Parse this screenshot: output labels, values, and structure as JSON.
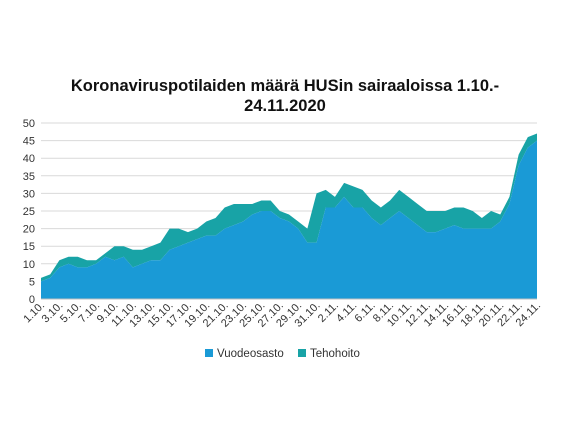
{
  "chart_data": {
    "type": "area",
    "title_lines": [
      "Koronaviruspotilaiden määrä HUSin sairaaloissa 1.10.-",
      "24.11.2020"
    ],
    "xlabel": "",
    "ylabel": "",
    "ylim": [
      0,
      50
    ],
    "yticks": [
      "0",
      "5",
      "10",
      "15",
      "20",
      "25",
      "30",
      "35",
      "40",
      "45",
      "50"
    ],
    "grid": true,
    "legend_position": "bottom",
    "colors": {
      "Vuodeosasto": "#1a9ad6",
      "Tehohoito": "#18a3a6"
    },
    "x": [
      "1.10.",
      "2.10.",
      "3.10.",
      "4.10.",
      "5.10.",
      "6.10.",
      "7.10.",
      "8.10.",
      "9.10.",
      "10.10.",
      "11.10.",
      "12.10.",
      "13.10.",
      "14.10.",
      "15.10.",
      "16.10.",
      "17.10.",
      "18.10.",
      "19.10.",
      "20.10.",
      "21.10.",
      "22.10.",
      "23.10.",
      "24.10.",
      "25.10.",
      "26.10.",
      "27.10.",
      "28.10.",
      "29.10.",
      "30.10.",
      "31.10.",
      "1.11.",
      "2.11.",
      "3.11.",
      "4.11.",
      "5.11.",
      "6.11.",
      "7.11.",
      "8.11.",
      "9.11.",
      "10.11.",
      "11.11.",
      "12.11.",
      "13.11.",
      "14.11.",
      "15.11.",
      "16.11.",
      "17.11.",
      "18.11.",
      "19.11.",
      "20.11.",
      "21.11.",
      "22.11.",
      "23.11.",
      "24.11."
    ],
    "x_tick_labels": [
      "1.10.",
      "3.10.",
      "5.10.",
      "7.10.",
      "9.10.",
      "11.10.",
      "13.10.",
      "15.10.",
      "17.10.",
      "19.10.",
      "21.10.",
      "23.10.",
      "25.10.",
      "27.10.",
      "29.10.",
      "31.10.",
      "2.11.",
      "4.11.",
      "6.11.",
      "8.11.",
      "10.11.",
      "12.11.",
      "14.11.",
      "16.11.",
      "18.11.",
      "20.11.",
      "22.11.",
      "24.11."
    ],
    "series": [
      {
        "name": "Vuodeosasto",
        "values": [
          5,
          6,
          9,
          10,
          9,
          9,
          10,
          12,
          11,
          12,
          9,
          10,
          11,
          11,
          14,
          15,
          16,
          17,
          18,
          18,
          20,
          21,
          22,
          24,
          25,
          25,
          23,
          22,
          20,
          16,
          16,
          26,
          26,
          29,
          26,
          26,
          23,
          21,
          23,
          25,
          23,
          21,
          19,
          19,
          20,
          21,
          20,
          20,
          20,
          20,
          22,
          27,
          38,
          43,
          45
        ]
      },
      {
        "name": "Tehohoito",
        "values": [
          1,
          1,
          2,
          2,
          3,
          2,
          1,
          1,
          4,
          3,
          5,
          4,
          4,
          5,
          6,
          5,
          3,
          3,
          4,
          5,
          6,
          6,
          5,
          3,
          3,
          3,
          2,
          2,
          2,
          4,
          14,
          5,
          3,
          4,
          6,
          5,
          5,
          5,
          5,
          6,
          6,
          6,
          6,
          6,
          5,
          5,
          6,
          5,
          3,
          5,
          2,
          2,
          3,
          3,
          2
        ]
      }
    ]
  }
}
